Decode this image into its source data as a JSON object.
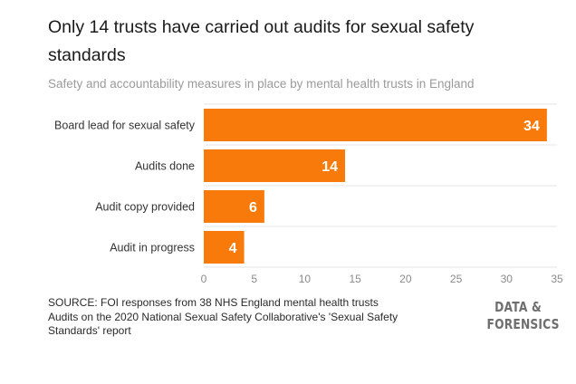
{
  "header": {
    "title": "Only 14 trusts have carried out audits for sexual safety standards",
    "subtitle": "Safety and accountability measures in place by mental health trusts in England"
  },
  "footer": {
    "source_line1": "SOURCE: FOI responses from 38 NHS England mental health trusts",
    "source_line2": "Audits on the 2020 National Sexual Safety Collaborative's 'Sexual Safety",
    "source_line3": "Standards' report",
    "brand_line1": "DATA &",
    "brand_line2": "FORENSICS"
  },
  "colors": {
    "bar": "#f77a0a",
    "grid": "#e6e6e6",
    "label": "#333333",
    "tick": "#8a8a8a",
    "value_label": "#ffffff"
  },
  "chart_data": {
    "type": "bar",
    "orientation": "horizontal",
    "title": "Only 14 trusts have carried out audits for sexual safety standards",
    "subtitle": "Safety and accountability measures in place by mental health trusts in England",
    "categories": [
      "Board lead for sexual safety",
      "Audits done",
      "Audit copy provided",
      "Audit in progress"
    ],
    "values": [
      34,
      14,
      6,
      4
    ],
    "xlabel": "",
    "ylabel": "",
    "xlim": [
      0,
      35
    ],
    "xticks": [
      0,
      5,
      10,
      15,
      20,
      25,
      30,
      35
    ],
    "grid": true,
    "data_labels": true
  }
}
